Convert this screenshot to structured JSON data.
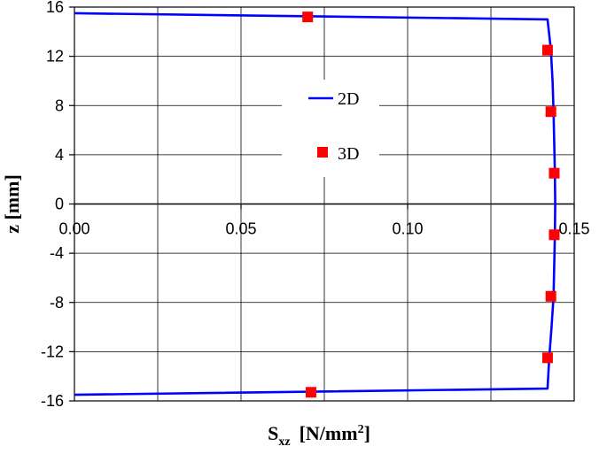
{
  "chart_data": {
    "type": "line",
    "xlabel": {
      "main": "S",
      "subscript": "xz",
      "unit_prefix": "[N/mm",
      "unit_superscript": "2",
      "unit_suffix": "]"
    },
    "ylabel": "z [mm]",
    "xlim": [
      0,
      0.15
    ],
    "ylim": [
      -16,
      16
    ],
    "xticks": [
      0,
      0.05,
      0.1,
      0.15
    ],
    "xtick_labels": [
      "0.00",
      "0.05",
      "0.10",
      "0.15"
    ],
    "yticks": [
      -16,
      -12,
      -8,
      -4,
      0,
      4,
      8,
      12,
      16
    ],
    "ytick_labels": [
      "-16",
      "-12",
      "-8",
      "-4",
      "0",
      "4",
      "8",
      "12",
      "16"
    ],
    "grid": true,
    "legend_position": "center",
    "series": [
      {
        "name": "2D",
        "style": "line",
        "color": "#0000ff",
        "points": [
          [
            0.0,
            15.5
          ],
          [
            0.142,
            15.0
          ],
          [
            0.143,
            12.5
          ],
          [
            0.1435,
            10.0
          ],
          [
            0.1438,
            7.5
          ],
          [
            0.144,
            5.0
          ],
          [
            0.1442,
            2.5
          ],
          [
            0.1443,
            0.0
          ],
          [
            0.1442,
            -2.5
          ],
          [
            0.144,
            -5.0
          ],
          [
            0.1438,
            -7.5
          ],
          [
            0.1432,
            -10.0
          ],
          [
            0.1425,
            -12.5
          ],
          [
            0.142,
            -15.0
          ],
          [
            0.0,
            -15.5
          ]
        ]
      },
      {
        "name": "3D",
        "style": "marker",
        "color": "#ff0000",
        "points": [
          [
            0.07,
            15.2
          ],
          [
            0.142,
            12.5
          ],
          [
            0.143,
            7.5
          ],
          [
            0.144,
            2.5
          ],
          [
            0.144,
            -2.5
          ],
          [
            0.143,
            -7.5
          ],
          [
            0.142,
            -12.5
          ],
          [
            0.071,
            -15.3
          ]
        ]
      }
    ]
  }
}
